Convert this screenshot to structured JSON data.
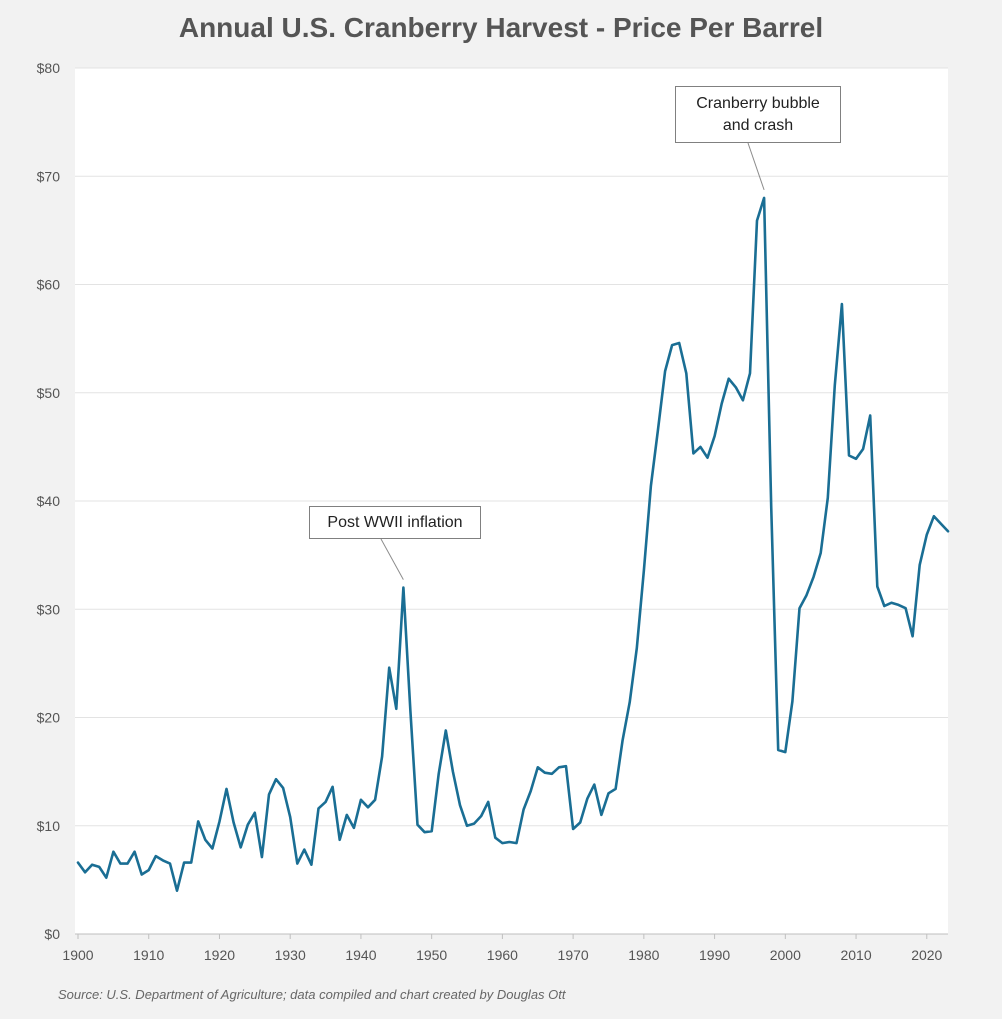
{
  "chart_data": {
    "type": "line",
    "title": "Annual U.S. Cranberry Harvest - Price Per Barrel",
    "xlabel": "",
    "ylabel": "",
    "xlim": [
      1900,
      2023
    ],
    "ylim": [
      0,
      80
    ],
    "y_ticks": [
      "$0",
      "$10",
      "$20",
      "$30",
      "$40",
      "$50",
      "$60",
      "$70",
      "$80"
    ],
    "y_tick_values": [
      0,
      10,
      20,
      30,
      40,
      50,
      60,
      70,
      80
    ],
    "x_ticks": [
      "1900",
      "1910",
      "1920",
      "1930",
      "1940",
      "1950",
      "1960",
      "1970",
      "1980",
      "1990",
      "2000",
      "2010",
      "2020"
    ],
    "x_tick_values": [
      1900,
      1910,
      1920,
      1930,
      1940,
      1950,
      1960,
      1970,
      1980,
      1990,
      2000,
      2010,
      2020
    ],
    "grid": true,
    "legend": "none",
    "series": [
      {
        "name": "Price Per Barrel",
        "color": "#1a6e94",
        "x": [
          1900,
          1901,
          1902,
          1903,
          1904,
          1905,
          1906,
          1907,
          1908,
          1909,
          1910,
          1911,
          1912,
          1913,
          1914,
          1915,
          1916,
          1917,
          1918,
          1919,
          1920,
          1921,
          1922,
          1923,
          1924,
          1925,
          1926,
          1927,
          1928,
          1929,
          1930,
          1931,
          1932,
          1933,
          1934,
          1935,
          1936,
          1937,
          1938,
          1939,
          1940,
          1941,
          1942,
          1943,
          1944,
          1945,
          1946,
          1947,
          1948,
          1949,
          1950,
          1951,
          1952,
          1953,
          1954,
          1955,
          1956,
          1957,
          1958,
          1959,
          1960,
          1961,
          1962,
          1963,
          1964,
          1965,
          1966,
          1967,
          1968,
          1969,
          1970,
          1971,
          1972,
          1973,
          1974,
          1975,
          1976,
          1977,
          1978,
          1979,
          1980,
          1981,
          1982,
          1983,
          1984,
          1985,
          1986,
          1987,
          1988,
          1989,
          1990,
          1991,
          1992,
          1993,
          1994,
          1995,
          1996,
          1997,
          1998,
          1999,
          2000,
          2001,
          2002,
          2003,
          2004,
          2005,
          2006,
          2007,
          2008,
          2009,
          2010,
          2011,
          2012,
          2013,
          2014,
          2015,
          2016,
          2017,
          2018,
          2019,
          2020,
          2021,
          2022,
          2023
        ],
        "values": [
          6.6,
          5.7,
          6.4,
          6.2,
          5.2,
          7.6,
          6.5,
          6.5,
          7.6,
          5.5,
          5.9,
          7.2,
          6.8,
          6.5,
          4.0,
          6.6,
          6.6,
          10.4,
          8.7,
          7.9,
          10.4,
          13.4,
          10.3,
          8.0,
          10.1,
          11.2,
          7.1,
          12.9,
          14.3,
          13.5,
          10.8,
          6.5,
          7.8,
          6.4,
          11.6,
          12.2,
          13.6,
          8.7,
          11.0,
          9.8,
          12.4,
          11.7,
          12.4,
          16.4,
          24.6,
          20.8,
          32.0,
          20.6,
          10.1,
          9.4,
          9.5,
          14.8,
          18.8,
          15.0,
          11.9,
          10.0,
          10.2,
          10.9,
          12.2,
          8.9,
          8.4,
          8.5,
          8.4,
          11.5,
          13.2,
          15.4,
          14.9,
          14.8,
          15.4,
          15.5,
          9.7,
          10.3,
          12.5,
          13.8,
          11.0,
          13.0,
          13.4,
          17.9,
          21.4,
          26.4,
          33.6,
          41.4,
          46.6,
          52.0,
          54.4,
          54.6,
          51.8,
          44.4,
          45.0,
          44.0,
          46.0,
          49.0,
          51.3,
          50.5,
          49.3,
          51.8,
          65.9,
          68.0,
          39.5,
          17.0,
          16.8,
          21.5,
          30.1,
          31.3,
          33.0,
          35.2,
          40.3,
          50.7,
          58.2,
          44.2,
          43.9,
          44.8,
          47.9,
          32.1,
          30.3,
          30.6,
          30.4,
          30.1,
          27.5,
          34.1,
          36.9,
          38.6,
          37.9,
          37.2
        ]
      }
    ],
    "annotations": [
      {
        "text_lines": [
          "Post WWII inflation"
        ],
        "x": 1946,
        "y": 32.0
      },
      {
        "text_lines": [
          "Cranberry bubble",
          "and crash"
        ],
        "x": 1997,
        "y": 68.0
      }
    ]
  },
  "source": "Source: U.S. Department of Agriculture; data compiled and chart created by Douglas Ott"
}
